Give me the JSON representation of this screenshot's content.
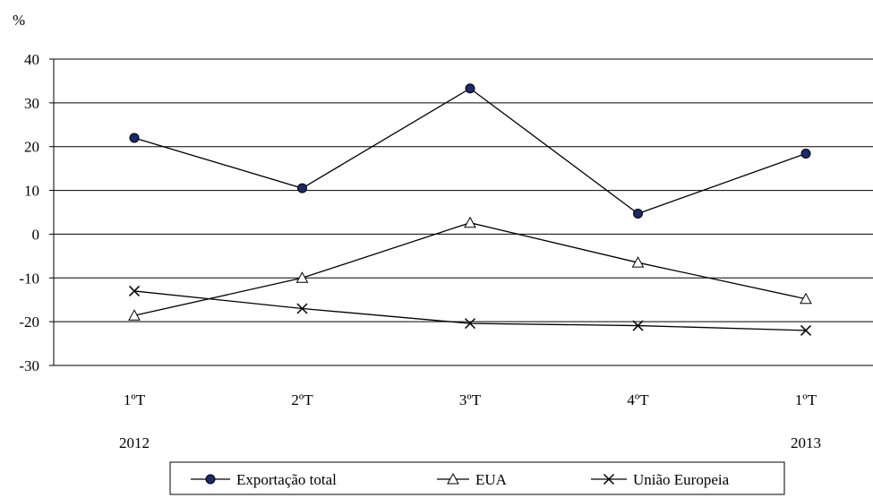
{
  "chart_data": {
    "type": "line",
    "title": "",
    "ylabel": "%",
    "xlabel": "",
    "ylim": [
      -30,
      40
    ],
    "yticks": [
      -30,
      -20,
      -10,
      0,
      10,
      20,
      30,
      40
    ],
    "grid": true,
    "legend_position": "bottom",
    "categories": [
      "1ºT",
      "2ºT",
      "3ºT",
      "4ºT",
      "1ºT"
    ],
    "year_labels": [
      "2012",
      "",
      "",
      "",
      "2013"
    ],
    "series": [
      {
        "name": "Exportação total",
        "marker": "filled-circle",
        "color": "#000000",
        "marker_color": "#1a2a6c",
        "values": [
          22.0,
          10.5,
          33.3,
          4.7,
          18.4
        ]
      },
      {
        "name": "EUA",
        "marker": "open-triangle",
        "color": "#000000",
        "values": [
          -18.6,
          -10.0,
          2.6,
          -6.5,
          -14.8
        ]
      },
      {
        "name": "União Europeia",
        "marker": "x-cross",
        "color": "#000000",
        "values": [
          -13.0,
          -17.0,
          -20.4,
          -20.9,
          -22.0
        ]
      }
    ]
  }
}
